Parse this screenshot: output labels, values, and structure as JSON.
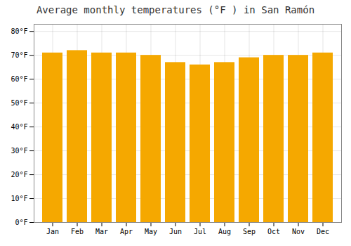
{
  "chart_data": {
    "type": "bar",
    "title": "Average monthly temperatures (°F ) in San Ramón",
    "categories": [
      "Jan",
      "Feb",
      "Mar",
      "Apr",
      "May",
      "Jun",
      "Jul",
      "Aug",
      "Sep",
      "Oct",
      "Nov",
      "Dec"
    ],
    "values": [
      71,
      72,
      71,
      71,
      70,
      67,
      66,
      67,
      69,
      70,
      70,
      71
    ],
    "color": "#F5A800",
    "ylim": [
      0,
      83
    ],
    "yticks": [
      {
        "value": 0,
        "label": "0°F"
      },
      {
        "value": 10,
        "label": "10°F"
      },
      {
        "value": 20,
        "label": "20°F"
      },
      {
        "value": 30,
        "label": "30°F"
      },
      {
        "value": 40,
        "label": "40°F"
      },
      {
        "value": 50,
        "label": "50°F"
      },
      {
        "value": 60,
        "label": "60°F"
      },
      {
        "value": 70,
        "label": "70°F"
      },
      {
        "value": 80,
        "label": "80°F"
      }
    ],
    "grid": true
  }
}
